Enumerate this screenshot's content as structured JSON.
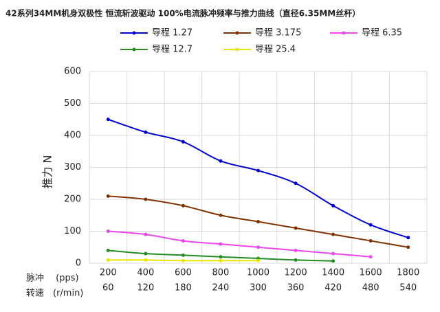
{
  "chart_data": {
    "type": "line",
    "title": "42系列34MM机身双极性 恒流斩波驱动 100%电流脉冲频率与推力曲线（直径6.35MM丝杆）",
    "y_label": "推力 N",
    "x_label": "脉冲　 (pps)",
    "x2_label": "转速　(r/min)",
    "categories": [
      "200",
      "400",
      "600",
      "800",
      "1000",
      "1200",
      "1400",
      "1600",
      "1800"
    ],
    "categories_rpm": [
      "60",
      "120",
      "180",
      "240",
      "300",
      "360",
      "420",
      "480",
      "540"
    ],
    "series": [
      {
        "name": "导程 1.27",
        "color": "#0000cc",
        "values": [
          450,
          410,
          380,
          320,
          290,
          250,
          180,
          120,
          80
        ]
      },
      {
        "name": "导程 3.175",
        "color": "#7f3300",
        "values": [
          210,
          200,
          180,
          150,
          130,
          110,
          90,
          70,
          50
        ]
      },
      {
        "name": "导程  6.35",
        "color": "#ee44ee",
        "values": [
          100,
          90,
          70,
          60,
          50,
          40,
          30,
          20,
          null
        ]
      },
      {
        "name": "导程  12.7",
        "color": "#228b22",
        "values": [
          40,
          30,
          25,
          20,
          15,
          10,
          7,
          null,
          null
        ]
      },
      {
        "name": "导程  25.4",
        "color": "#e6e600",
        "values": [
          10,
          10,
          8,
          8,
          8,
          null,
          null,
          null,
          null
        ]
      }
    ],
    "ylim": [
      0,
      600
    ],
    "yticks": [
      0,
      100,
      200,
      300,
      400,
      500,
      600
    ],
    "grid": true
  }
}
